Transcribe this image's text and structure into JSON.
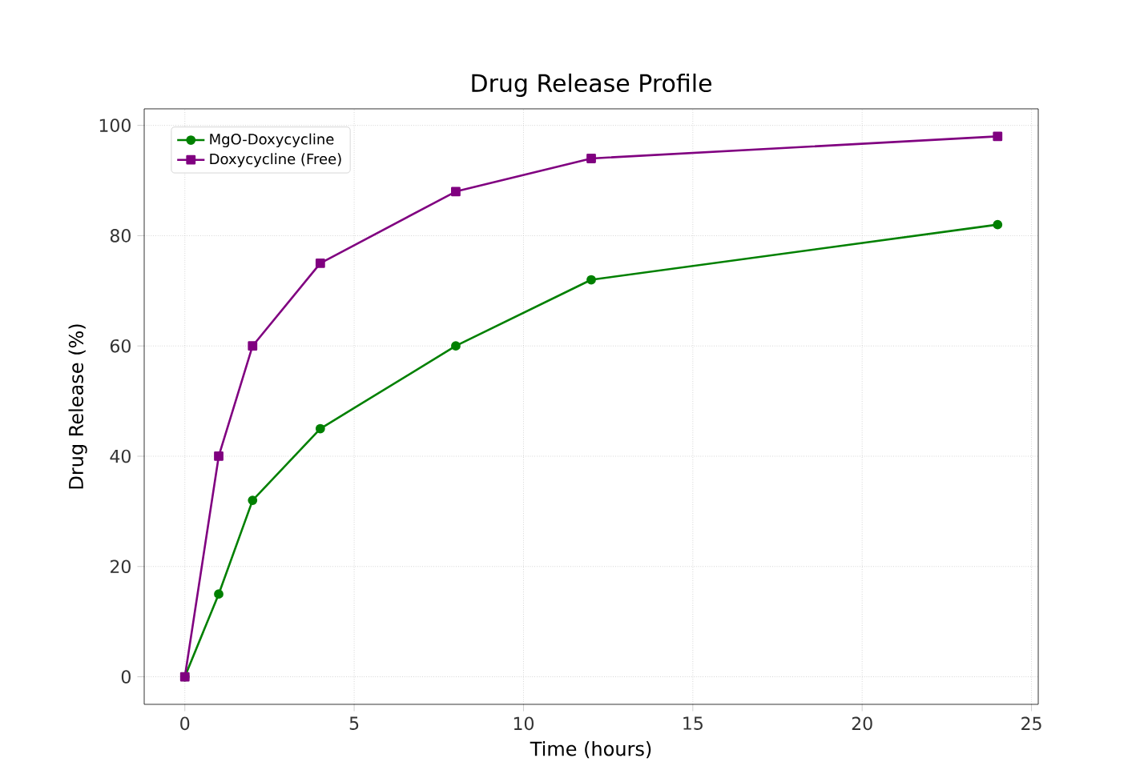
{
  "chart_data": {
    "type": "line",
    "title": "Drug Release Profile",
    "xlabel": "Time (hours)",
    "ylabel": "Drug Release (%)",
    "x": [
      0,
      1,
      2,
      4,
      8,
      12,
      24
    ],
    "series": [
      {
        "name": "MgO-Doxycycline",
        "color": "#008000",
        "marker": "circle",
        "values": [
          0,
          15,
          32,
          45,
          60,
          72,
          82
        ]
      },
      {
        "name": "Doxycycline (Free)",
        "color": "#800080",
        "marker": "square",
        "values": [
          0,
          40,
          60,
          75,
          88,
          94,
          98
        ]
      }
    ],
    "xlim": [
      -1.2,
      25.2
    ],
    "ylim": [
      -5,
      103
    ],
    "xticks": [
      0,
      5,
      10,
      15,
      20,
      25
    ],
    "yticks": [
      0,
      20,
      40,
      60,
      80,
      100
    ],
    "grid": true,
    "legend": "top left",
    "line_style": "solid"
  }
}
